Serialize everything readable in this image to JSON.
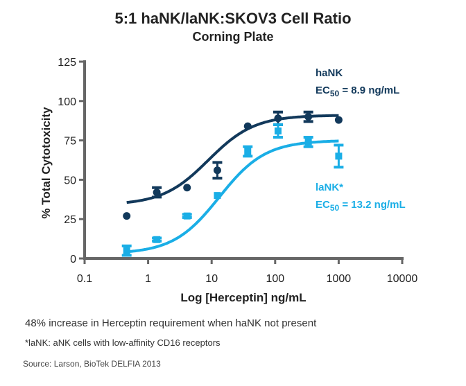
{
  "chart_data": {
    "type": "scatter",
    "title": "5:1 haNK/laNK:SKOV3 Cell Ratio",
    "subtitle": "Corning Plate",
    "xlabel": "Log [Herceptin] ng/mL",
    "ylabel": "% Total Cytotoxicity",
    "xscale": "log",
    "xlim": [
      0.1,
      10000
    ],
    "ylim": [
      0,
      125
    ],
    "xticks": [
      "0.1",
      "1",
      "10",
      "100",
      "1000",
      "10000"
    ],
    "xtick_values": [
      0.1,
      1,
      10,
      100,
      1000,
      10000
    ],
    "yticks": [
      "0",
      "25",
      "50",
      "75",
      "100",
      "125"
    ],
    "ytick_values": [
      0,
      25,
      50,
      75,
      100,
      125
    ],
    "series": [
      {
        "name": "haNK",
        "color": "#12395b",
        "marker": "circle",
        "x": [
          0.46,
          1.37,
          4.1,
          12.3,
          37,
          111,
          333,
          1000
        ],
        "y": [
          27,
          42,
          45,
          56,
          84,
          89,
          90,
          88
        ],
        "err": [
          0,
          3,
          0,
          5,
          0,
          4,
          3,
          0
        ],
        "fit": {
          "bottom": 34,
          "top": 91,
          "ec50": 8.9,
          "hill": 1.2
        },
        "label": "haNK",
        "ec_prefix": "EC",
        "ec_sub": "50",
        "ec_text": " = 8.9 ng/mL"
      },
      {
        "name": "laNK*",
        "color": "#1aaee6",
        "marker": "square",
        "x": [
          0.46,
          1.37,
          4.1,
          12.3,
          37,
          111,
          333,
          1000
        ],
        "y": [
          5,
          12,
          27,
          40,
          68,
          81,
          74,
          65
        ],
        "err": [
          3,
          1,
          1,
          0,
          3,
          4,
          3,
          7
        ],
        "fit": {
          "bottom": 3,
          "top": 75,
          "ec50": 13.2,
          "hill": 1.2
        },
        "label": "laNK*",
        "ec_prefix": "EC",
        "ec_sub": "50",
        "ec_text": " = 13.2 ng/mL"
      }
    ]
  },
  "notes": {
    "increase": "48% increase in Herceptin requirement when haNK not present",
    "footnote": "*laNK: aNK cells with low-affinity CD16 receptors",
    "source": "Source: Larson, BioTek DELFIA 2013"
  }
}
